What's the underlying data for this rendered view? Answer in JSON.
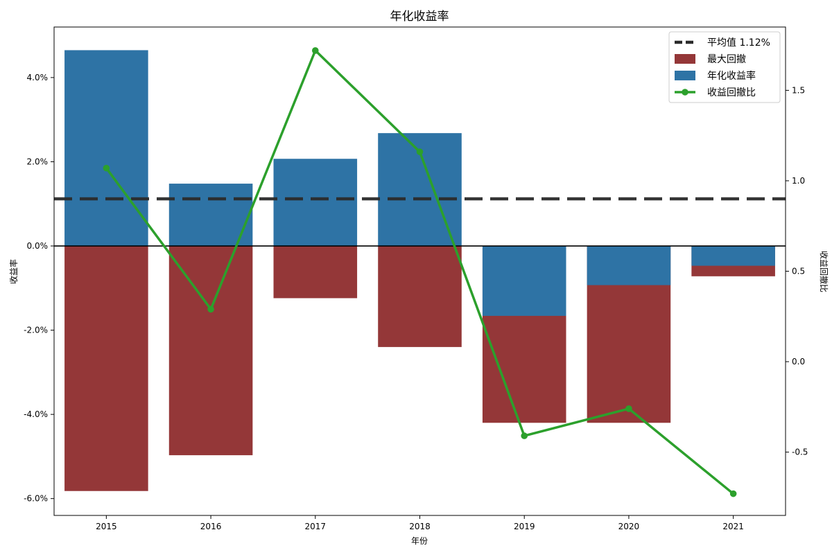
{
  "chart_data": {
    "type": "bar",
    "title": "年化收益率",
    "xlabel": "年份",
    "ylabel": "收益率",
    "y2label": "收益回撤比",
    "categories": [
      "2015",
      "2016",
      "2017",
      "2018",
      "2019",
      "2020",
      "2021"
    ],
    "ylim": [
      -6.4,
      5.2
    ],
    "y2lim": [
      -0.85,
      1.85
    ],
    "yticks": [
      {
        "value": 4,
        "label": "4.0%"
      },
      {
        "value": 2,
        "label": "2.0%"
      },
      {
        "value": 0,
        "label": "0.0%"
      },
      {
        "value": -2,
        "label": "-2.0%"
      },
      {
        "value": -4,
        "label": "-4.0%"
      },
      {
        "value": -6,
        "label": "-6.0%"
      }
    ],
    "y2ticks": [
      {
        "value": 1.5,
        "label": "1.5"
      },
      {
        "value": 1.0,
        "label": "1.0"
      },
      {
        "value": 0.5,
        "label": "0.5"
      },
      {
        "value": 0.0,
        "label": "0.0"
      },
      {
        "value": -0.5,
        "label": "-0.5"
      }
    ],
    "series": [
      {
        "name": "年化收益率",
        "type": "bar",
        "axis": "left",
        "color": "#2e73a5",
        "values": [
          4.65,
          1.48,
          2.07,
          2.68,
          -1.66,
          -0.93,
          -0.47
        ]
      },
      {
        "name": "最大回撤",
        "type": "bar",
        "axis": "left",
        "color": "#943738",
        "values": [
          -5.82,
          -4.97,
          -1.24,
          -2.4,
          -4.2,
          -4.2,
          -0.72
        ]
      },
      {
        "name": "收益回撤比",
        "type": "line",
        "axis": "right",
        "color": "#2ca02c",
        "values": [
          1.07,
          0.29,
          1.72,
          1.16,
          -0.41,
          -0.26,
          -0.73
        ]
      }
    ],
    "reference_line": {
      "name": "平均值 1.12%",
      "value": 1.12,
      "axis": "left",
      "style": "dashed",
      "color": "#2b2b2b"
    },
    "legend": {
      "position": "top-right",
      "entries": [
        "平均值 1.12%",
        "最大回撤",
        "年化收益率",
        "收益回撤比"
      ]
    },
    "grid": false
  }
}
